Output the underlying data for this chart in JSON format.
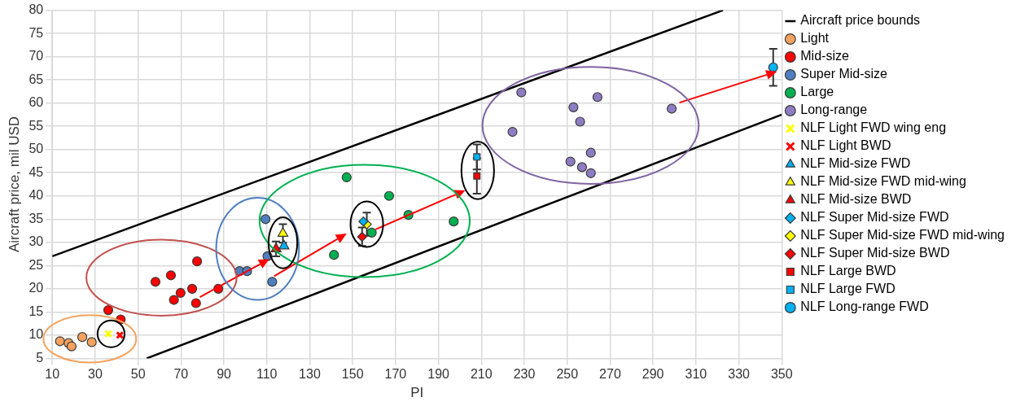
{
  "chart_data": {
    "type": "scatter",
    "xlabel": "PI",
    "ylabel": "Aircraft price, mil USD",
    "xlim": [
      10,
      350
    ],
    "xticks": [
      10,
      30,
      50,
      70,
      90,
      110,
      130,
      150,
      170,
      190,
      210,
      230,
      250,
      270,
      290,
      310,
      330,
      350
    ],
    "ylim": [
      5,
      80
    ],
    "yticks": [
      5,
      10,
      15,
      20,
      25,
      30,
      35,
      40,
      45,
      50,
      55,
      60,
      65,
      70,
      75,
      80
    ],
    "grid": true,
    "legend": "right",
    "marker": "circle",
    "series": [
      {
        "name": "Aircraft price bounds",
        "type": "line",
        "marker": "none",
        "color": "#000000",
        "x": [
          10,
          322.6,
          null,
          54,
          350
        ],
        "values": [
          27,
          80,
          null,
          5,
          57.5
        ]
      },
      {
        "name": "Light",
        "color": "#f4a25e",
        "x": [
          13.6,
          17.6,
          19,
          24,
          28.4
        ],
        "values": [
          8.7,
          8.3,
          7.6,
          9.6,
          8.5
        ]
      },
      {
        "name": "Mid-size",
        "color": "#ff0000",
        "x": [
          36.1,
          41.9,
          58.1,
          65.3,
          77.5,
          69.8,
          75.2,
          66.7,
          77,
          87.4
        ],
        "values": [
          15.4,
          13.4,
          21.5,
          22.9,
          25.9,
          19.1,
          20,
          17.6,
          16.9,
          20
        ]
      },
      {
        "name": "Super Mid-size",
        "color": "#4f7fbf",
        "x": [
          109.4,
          97.3,
          100.8,
          112.5,
          110.3
        ],
        "values": [
          35,
          23.8,
          23.8,
          21.5,
          27
        ]
      },
      {
        "name": "Large",
        "color": "#00b050",
        "x": [
          147.2,
          167,
          176,
          197.1,
          141.3,
          158.9
        ],
        "values": [
          44,
          40,
          35.9,
          34.5,
          27.3,
          32.1
        ]
      },
      {
        "name": "Long-range",
        "color": "#8e7cc3",
        "x": [
          228.6,
          224.5,
          252.9,
          264.1,
          256,
          261,
          251.5,
          256.9,
          261,
          298.7
        ],
        "values": [
          62.3,
          53.8,
          59.1,
          61.3,
          56,
          49.3,
          47.4,
          46.2,
          44.9,
          58.8
        ]
      },
      {
        "name": "NLF Light FWD wing eng",
        "color": "#ffff00",
        "marker": "cross",
        "x": [
          36.1
        ],
        "values": [
          10.3
        ]
      },
      {
        "name": "NLF Light BWD",
        "color": "#ff0000",
        "marker": "cross",
        "x": [
          41.5
        ],
        "values": [
          10
        ]
      },
      {
        "name": "NLF Mid-size FWD",
        "color": "#00b0f0",
        "marker": "triangle",
        "x": [
          118
        ],
        "values": [
          29.2
        ]
      },
      {
        "name": "NLF Mid-size FWD mid-wing",
        "color": "#ffff00",
        "marker": "triangle",
        "x": [
          117.5
        ],
        "values": [
          31.9
        ],
        "errors": [
          2
        ]
      },
      {
        "name": "NLF Mid-size BWD",
        "color": "#ff0000",
        "marker": "triangle",
        "x": [
          114.3
        ],
        "values": [
          28.6
        ],
        "errors": [
          [
            27,
            30.2
          ]
        ]
      },
      {
        "name": "NLF Super Mid-size FWD",
        "color": "#00b0f0",
        "marker": "diamond",
        "x": [
          155
        ],
        "values": [
          34.5
        ]
      },
      {
        "name": "NLF Super Mid-size FWD mid-wing",
        "color": "#ffff00",
        "marker": "diamond",
        "x": [
          156.6
        ],
        "values": [
          33.9
        ],
        "errors": [
          2.5
        ]
      },
      {
        "name": "NLF Super Mid-size BWD",
        "color": "#ff0000",
        "marker": "diamond",
        "x": [
          154.4
        ],
        "values": [
          31.2
        ],
        "errors": [
          2
        ]
      },
      {
        "name": "NLF Large BWD",
        "color": "#ff0000",
        "marker": "square",
        "x": [
          207.9
        ],
        "values": [
          44.3
        ],
        "errors": [
          3.8
        ]
      },
      {
        "name": "NLF Large FWD",
        "color": "#00b0f0",
        "marker": "square",
        "x": [
          207.9
        ],
        "values": [
          48.4
        ],
        "errors": [
          2.7
        ]
      },
      {
        "name": "NLF Long-range FWD",
        "color": "#00b0f0",
        "marker": "circle",
        "x": [
          346
        ],
        "values": [
          67.7
        ],
        "errors": [
          4
        ]
      }
    ]
  }
}
